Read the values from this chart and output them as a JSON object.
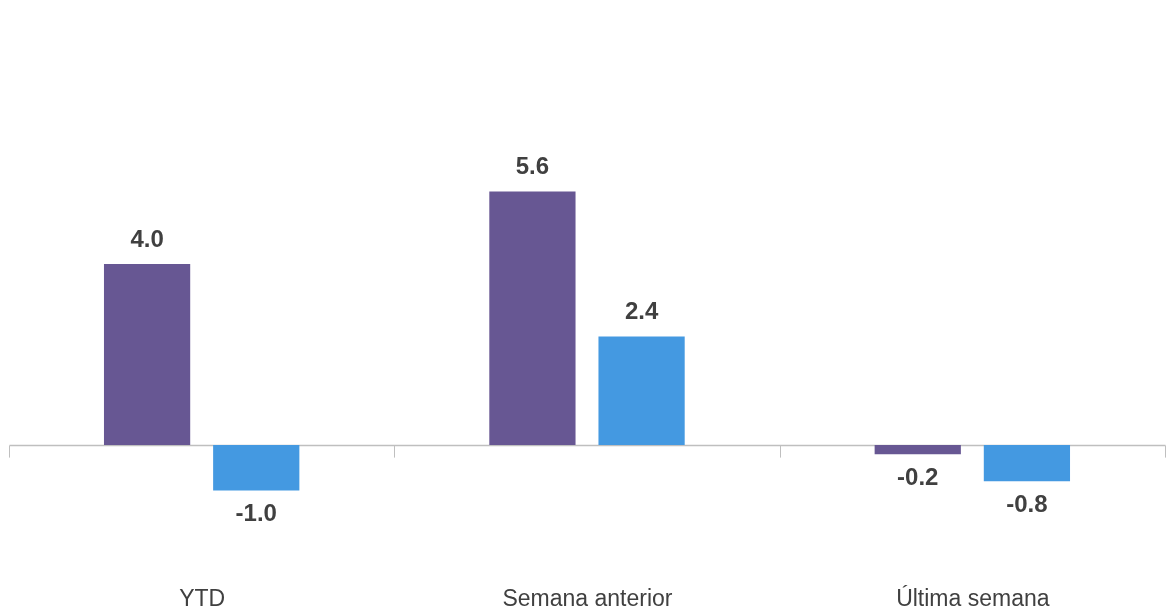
{
  "chart_data": {
    "type": "bar",
    "categories": [
      "YTD",
      "Semana anterior",
      "Última semana"
    ],
    "series": [
      {
        "color": "#675793",
        "values": [
          4.0,
          5.6,
          -0.2
        ],
        "value_labels": [
          "4.0",
          "5.6",
          "-0.2"
        ]
      },
      {
        "color": "#4499e1",
        "values": [
          -1.0,
          2.4,
          -0.8
        ],
        "value_labels": [
          "-1.0",
          "2.4",
          "-0.8"
        ]
      }
    ],
    "grid": false,
    "legend": false
  }
}
